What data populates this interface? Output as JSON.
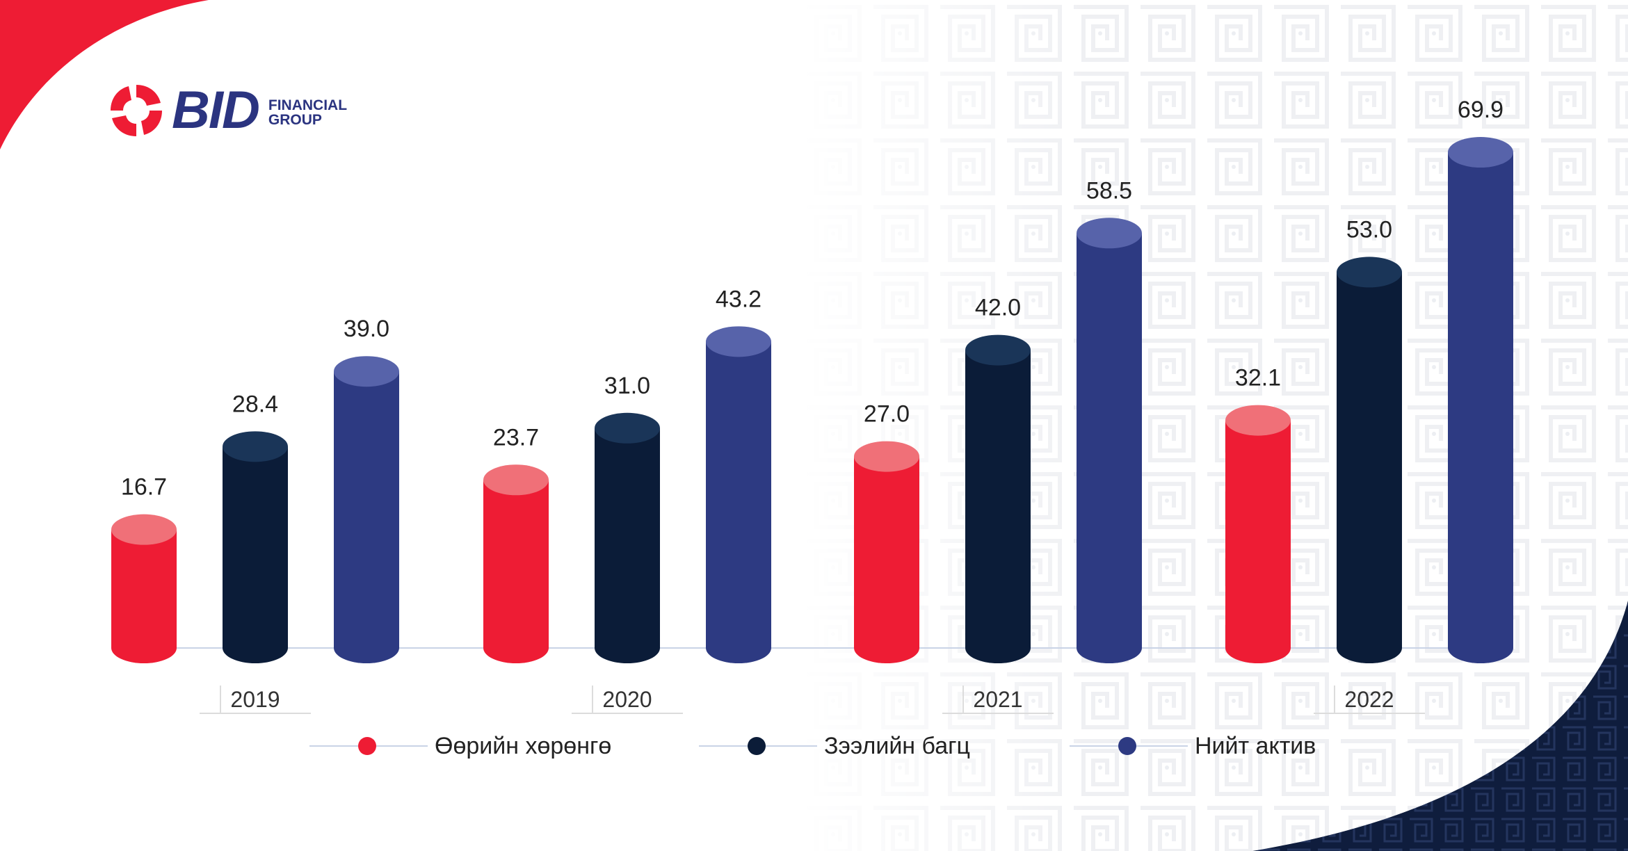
{
  "brand": {
    "name": "BID",
    "sub_line1": "FINANCIAL",
    "sub_line2": "GROUP"
  },
  "colors": {
    "red": "#ee1c34",
    "red_top": "#f07078",
    "navy": "#0b1c38",
    "navy_top": "#1a3558",
    "blue": "#2d3a82",
    "blue_top": "#5763aa",
    "brand_blue": "#2b3480",
    "pattern": "#f2f3f5"
  },
  "chart_data": {
    "type": "bar",
    "title": "",
    "xlabel": "",
    "ylabel": "",
    "categories": [
      "2019",
      "2020",
      "2021",
      "2022"
    ],
    "series": [
      {
        "name": "Өөрийн хөрөнгө",
        "values": [
          16.7,
          23.7,
          27.0,
          32.1
        ],
        "labels": [
          "16.7",
          "23.7",
          "27.0",
          "32.1"
        ],
        "color_key": "red"
      },
      {
        "name": "Зээлийн багц",
        "values": [
          28.4,
          31.0,
          42.0,
          53.0
        ],
        "labels": [
          "28.4",
          "31.0",
          "42.0",
          "53.0"
        ],
        "color_key": "navy"
      },
      {
        "name": "Нийт актив",
        "values": [
          39.0,
          43.2,
          58.5,
          69.9
        ],
        "labels": [
          "39.0",
          "43.2",
          "58.5",
          "69.9"
        ],
        "color_key": "blue"
      }
    ],
    "legend_position": "bottom",
    "grid": false,
    "ylim": [
      0,
      75
    ]
  }
}
